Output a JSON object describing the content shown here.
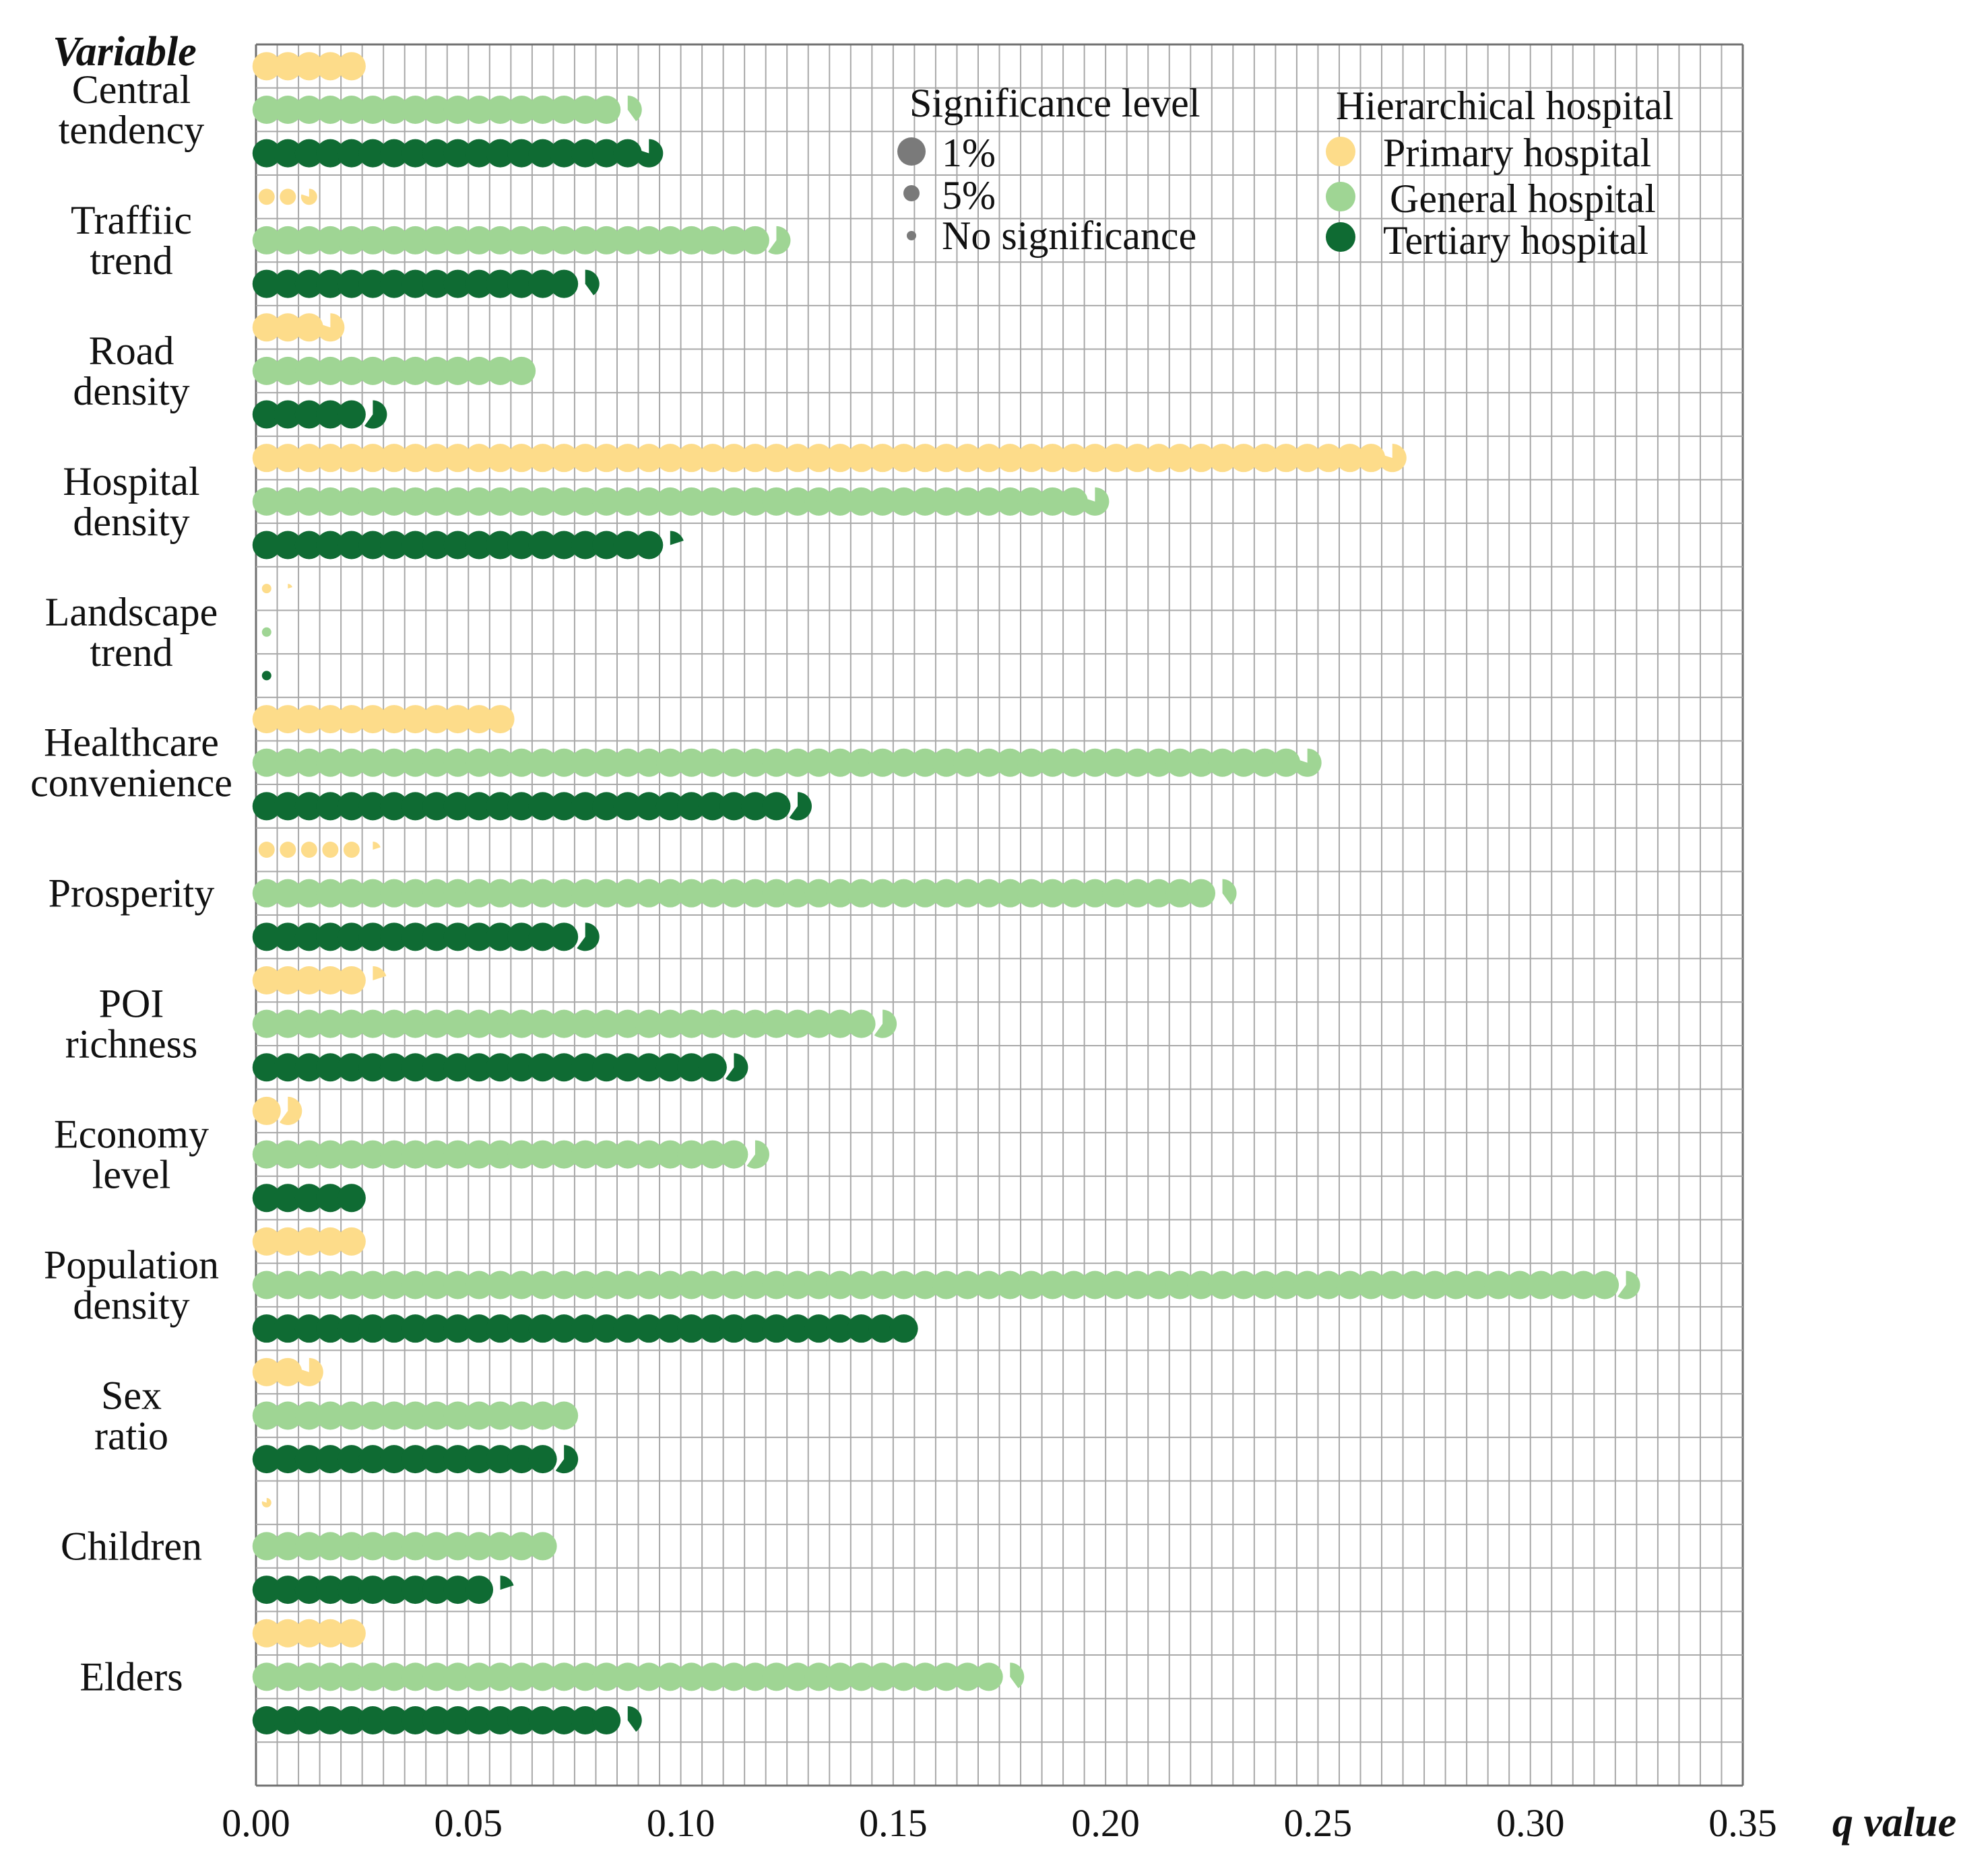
{
  "chart_data": {
    "type": "dot-waffle",
    "xlabel": "q value",
    "ylabel": "Variable",
    "xlim": [
      0.0,
      0.35
    ],
    "x_ticks": [
      "0.00",
      "0.05",
      "0.10",
      "0.15",
      "0.20",
      "0.25",
      "0.30",
      "0.35"
    ],
    "grid": true,
    "series_names": [
      "Primary hospital",
      "General hospital",
      "Tertiary hospital"
    ],
    "colors": {
      "Primary hospital": "#fddc8a",
      "General hospital": "#9fd594",
      "Tertiary hospital": "#0f6b33"
    },
    "variables": [
      {
        "label": [
          "Central",
          "tendency"
        ],
        "q": [
          0.025,
          0.087,
          0.094
        ],
        "sig": [
          "1%",
          "1%",
          "1%"
        ]
      },
      {
        "label": [
          "Traffiic",
          "trend"
        ],
        "q": [
          0.014,
          0.123,
          0.077
        ],
        "sig": [
          "5%",
          "1%",
          "1%"
        ]
      },
      {
        "label": [
          "Road",
          "density"
        ],
        "q": [
          0.019,
          0.065,
          0.028
        ],
        "sig": [
          "1%",
          "1%",
          "1%"
        ]
      },
      {
        "label": [
          "Hospital",
          "density"
        ],
        "q": [
          0.269,
          0.199,
          0.096
        ],
        "sig": [
          "1%",
          "1%",
          "1%"
        ]
      },
      {
        "label": [
          "Landscape",
          "trend"
        ],
        "q": [
          0.006,
          0.005,
          0.005
        ],
        "sig": [
          "no",
          "no",
          "no"
        ]
      },
      {
        "label": [
          "Healthcare",
          "convenience"
        ],
        "q": [
          0.06,
          0.249,
          0.128
        ],
        "sig": [
          "1%",
          "1%",
          "1%"
        ]
      },
      {
        "label": [
          "Prosperity"
        ],
        "q": [
          0.026,
          0.227,
          0.078
        ],
        "sig": [
          "5%",
          "1%",
          "1%"
        ]
      },
      {
        "label": [
          "POI",
          "richness"
        ],
        "q": [
          0.026,
          0.148,
          0.113
        ],
        "sig": [
          "1%",
          "1%",
          "1%"
        ]
      },
      {
        "label": [
          "Economy",
          "level"
        ],
        "q": [
          0.008,
          0.118,
          0.025
        ],
        "sig": [
          "1%",
          "1%",
          "1%"
        ]
      },
      {
        "label": [
          "Population",
          "density"
        ],
        "q": [
          0.025,
          0.323,
          0.155
        ],
        "sig": [
          "1%",
          "1%",
          "1%"
        ]
      },
      {
        "label": [
          "Sex",
          "ratio"
        ],
        "q": [
          0.014,
          0.075,
          0.073
        ],
        "sig": [
          "1%",
          "1%",
          "1%"
        ]
      },
      {
        "label": [
          "Children"
        ],
        "q": [
          0.004,
          0.07,
          0.056
        ],
        "sig": [
          "no",
          "1%",
          "1%"
        ]
      },
      {
        "label": [
          "Elders"
        ],
        "q": [
          0.025,
          0.177,
          0.087
        ],
        "sig": [
          "1%",
          "1%",
          "1%"
        ]
      }
    ]
  },
  "legend": {
    "significance": {
      "title": "Significance level",
      "items": [
        {
          "label": "1%",
          "size": "large"
        },
        {
          "label": "5%",
          "size": "medium"
        },
        {
          "label": "No significance",
          "size": "small"
        }
      ],
      "color": "#7a7a7a"
    },
    "hospital": {
      "title": "Hierarchical hospital",
      "items": [
        "Primary hospital",
        "General hospital",
        "Tertiary hospital"
      ]
    }
  }
}
